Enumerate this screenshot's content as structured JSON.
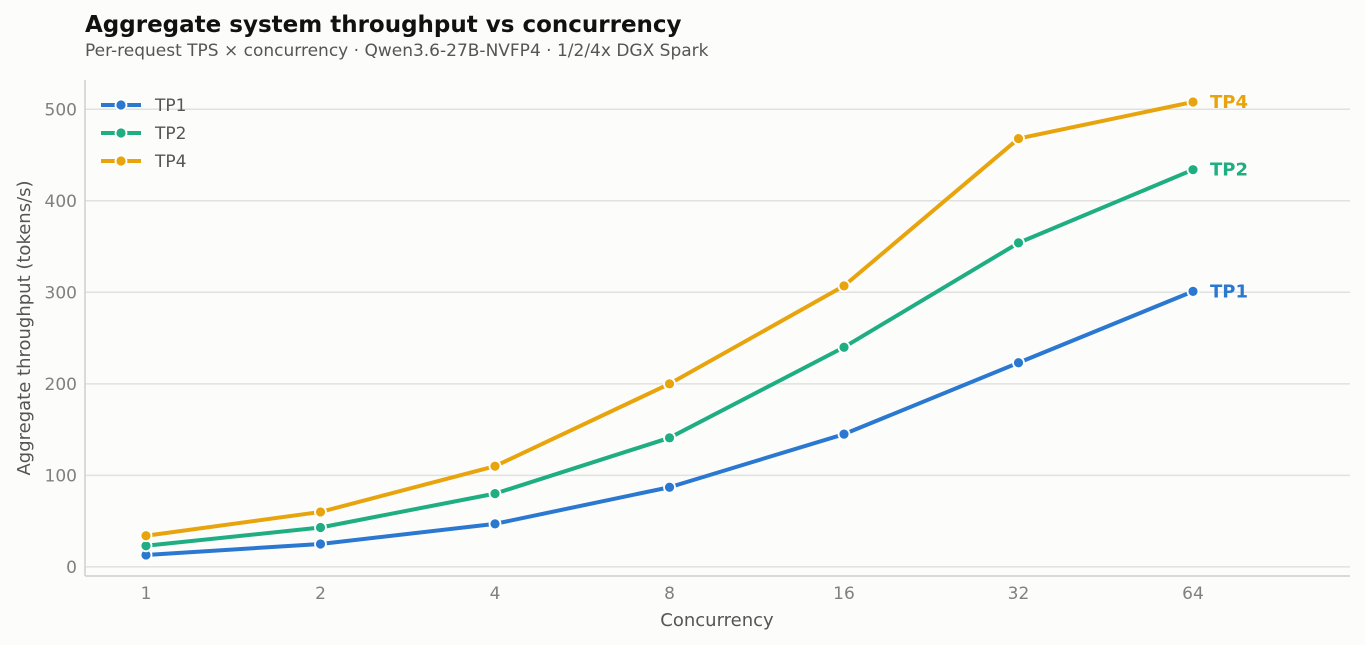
{
  "chart_data": {
    "type": "line",
    "title": "Aggregate system throughput vs concurrency",
    "subtitle": "Per-request TPS × concurrency · Qwen3.6-27B-NVFP4 · 1/2/4x DGX Spark",
    "xlabel": "Concurrency",
    "ylabel": "Aggregate throughput (tokens/s)",
    "x_scale": "log2",
    "categories": [
      "1",
      "2",
      "4",
      "8",
      "16",
      "32",
      "64"
    ],
    "x": [
      1,
      2,
      4,
      8,
      16,
      32,
      64
    ],
    "ylim": [
      -10,
      532
    ],
    "yticks": [
      0,
      100,
      200,
      300,
      400,
      500
    ],
    "ytick_labels": [
      "0",
      "100",
      "200",
      "300",
      "400",
      "500"
    ],
    "grid": "horizontal",
    "legend_position": "top-left",
    "series": [
      {
        "name": "TP1",
        "color": "#2b78d0",
        "values": [
          13,
          25,
          47,
          87,
          145,
          223,
          301
        ]
      },
      {
        "name": "TP2",
        "color": "#1fae82",
        "values": [
          23,
          43,
          80,
          141,
          240,
          354,
          434
        ]
      },
      {
        "name": "TP4",
        "color": "#e8a40c",
        "values": [
          34,
          60,
          110,
          200,
          307,
          468,
          508
        ]
      }
    ]
  }
}
